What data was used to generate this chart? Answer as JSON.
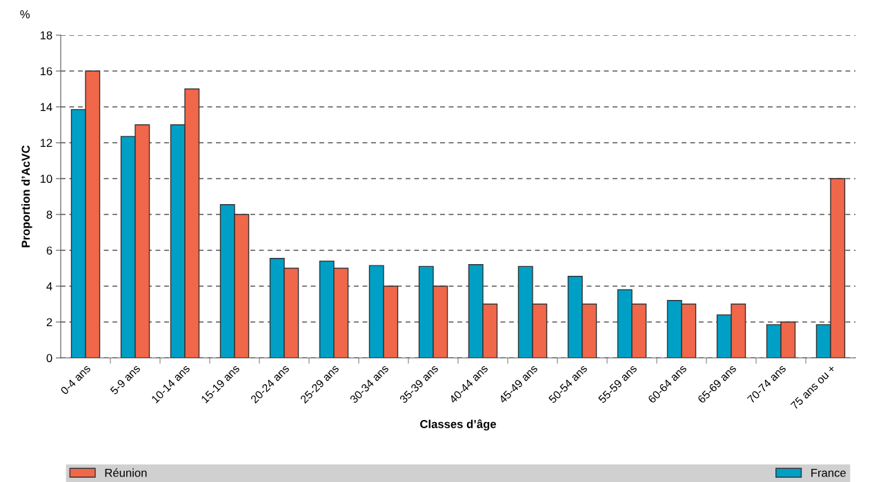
{
  "chart_data": {
    "type": "bar",
    "categories": [
      "0-4 ans",
      "5-9 ans",
      "10-14 ans",
      "15-19 ans",
      "20-24 ans",
      "25-29 ans",
      "30-34 ans",
      "35-39 ans",
      "40-44 ans",
      "45-49 ans",
      "50-54 ans",
      "55-59 ans",
      "60-64 ans",
      "65-69 ans",
      "70-74 ans",
      "75 ans ou +"
    ],
    "series": [
      {
        "name": "France",
        "color": "#00a0c6",
        "values": [
          13.85,
          12.35,
          13.0,
          8.55,
          5.55,
          5.4,
          5.15,
          5.1,
          5.2,
          5.1,
          4.55,
          3.8,
          3.2,
          2.4,
          1.85,
          1.85
        ]
      },
      {
        "name": "Réunion",
        "color": "#f0674a",
        "values": [
          16,
          13,
          15,
          8,
          5,
          5,
          4,
          4,
          3,
          3,
          3,
          3,
          3,
          3,
          2,
          10
        ]
      }
    ],
    "xlabel": "Classes d’âge",
    "ylabel": "Proportion d’AcVC",
    "annotations": [
      "%"
    ],
    "ylim": [
      0,
      18
    ],
    "yticks": [
      0,
      2,
      4,
      6,
      8,
      10,
      12,
      14,
      16,
      18
    ],
    "grid": "y",
    "legend": "bottom"
  }
}
